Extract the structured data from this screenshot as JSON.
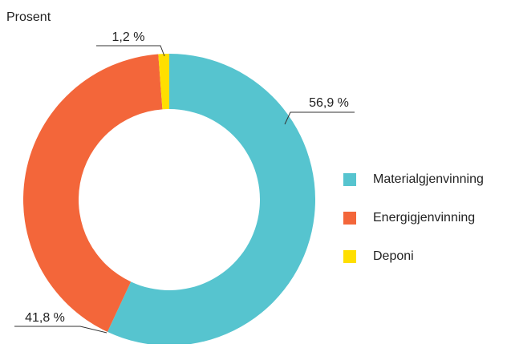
{
  "chart_data": {
    "type": "pie",
    "ylabel": "Prosent",
    "categories": [
      "Materialgjenvinning",
      "Energigjenvinning",
      "Deponi"
    ],
    "values": [
      56.9,
      41.8,
      1.2
    ],
    "value_labels": [
      "56,9 %",
      "41,8 %",
      "1,2 %"
    ],
    "colors": [
      "#56c4cf",
      "#f3663a",
      "#ffdf00"
    ],
    "legend": "right"
  }
}
